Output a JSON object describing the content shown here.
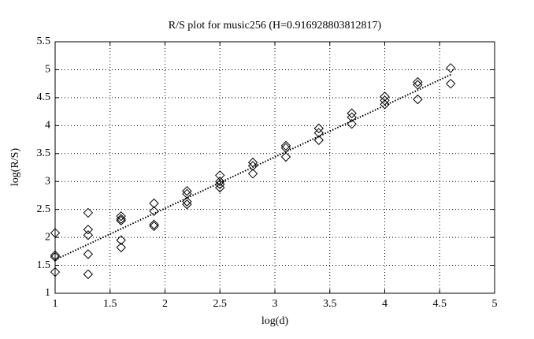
{
  "chart_data": {
    "type": "scatter",
    "title": "R/S plot for music256 (H=0.916928803812817)",
    "xlabel": "log(d)",
    "ylabel": "log(R/S)",
    "x": [
      1.0,
      1.0,
      1.0,
      1.0,
      1.3,
      1.3,
      1.3,
      1.3,
      1.3,
      1.6,
      1.6,
      1.6,
      1.6,
      1.6,
      1.9,
      1.9,
      1.9,
      1.9,
      2.2,
      2.2,
      2.2,
      2.2,
      2.5,
      2.5,
      2.5,
      2.5,
      2.8,
      2.8,
      2.8,
      3.1,
      3.1,
      3.1,
      3.4,
      3.4,
      3.4,
      3.7,
      3.7,
      3.7,
      4.0,
      4.0,
      4.0,
      4.3,
      4.3,
      4.3,
      4.6,
      4.6
    ],
    "y": [
      2.08,
      1.68,
      1.65,
      1.38,
      2.44,
      2.14,
      2.04,
      1.7,
      1.34,
      2.38,
      2.33,
      2.3,
      1.95,
      1.82,
      2.61,
      2.47,
      2.23,
      2.2,
      2.83,
      2.78,
      2.64,
      2.59,
      3.11,
      3.0,
      2.95,
      2.89,
      3.34,
      3.28,
      3.14,
      3.64,
      3.6,
      3.44,
      3.95,
      3.87,
      3.74,
      4.22,
      4.15,
      4.03,
      4.52,
      4.45,
      4.38,
      4.78,
      4.73,
      4.47,
      5.03,
      4.75
    ],
    "color": "#000000",
    "fit_line": {
      "x": [
        1.0,
        4.61
      ],
      "y": [
        1.6,
        4.92
      ]
    },
    "xlim": [
      1,
      5
    ],
    "xticks": [
      1,
      1.5,
      2,
      2.5,
      3,
      3.5,
      4,
      4.5,
      5
    ],
    "ylim": [
      1,
      5.5
    ],
    "yticks": [
      1,
      1.5,
      2,
      2.5,
      3,
      3.5,
      4,
      4.5,
      5,
      5.5
    ],
    "grid": true
  }
}
